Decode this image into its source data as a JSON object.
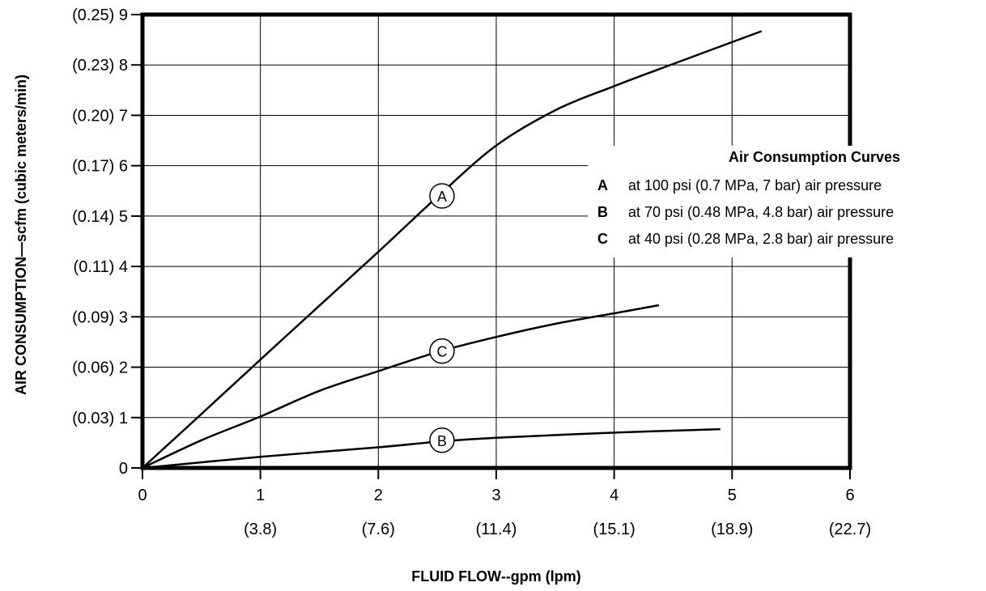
{
  "chart_data": {
    "type": "line",
    "xlabel": "FLUID FLOW--gpm (lpm)",
    "ylabel": "AIR CONSUMPTION—scfm (cubic meters/min)",
    "xlim": [
      0,
      6
    ],
    "ylim": [
      0,
      9
    ],
    "grid": true,
    "x_ticks": [
      {
        "value": 0,
        "label": "0",
        "sublabel": ""
      },
      {
        "value": 1,
        "label": "1",
        "sublabel": "(3.8)"
      },
      {
        "value": 2,
        "label": "2",
        "sublabel": "(7.6)"
      },
      {
        "value": 3,
        "label": "3",
        "sublabel": "(11.4)"
      },
      {
        "value": 4,
        "label": "4",
        "sublabel": "(15.1)"
      },
      {
        "value": 5,
        "label": "5",
        "sublabel": "(18.9)"
      },
      {
        "value": 6,
        "label": "6",
        "sublabel": "(22.7)"
      }
    ],
    "y_ticks": [
      {
        "value": 0,
        "label": "0"
      },
      {
        "value": 1,
        "label": "(0.03) 1"
      },
      {
        "value": 2,
        "label": "(0.06) 2"
      },
      {
        "value": 3,
        "label": "(0.09) 3"
      },
      {
        "value": 4,
        "label": "(0.11) 4"
      },
      {
        "value": 5,
        "label": "(0.14) 5"
      },
      {
        "value": 6,
        "label": "(0.17) 6"
      },
      {
        "value": 7,
        "label": "(0.20) 7"
      },
      {
        "value": 8,
        "label": "(0.23) 8"
      },
      {
        "value": 9,
        "label": "(0.25) 9"
      }
    ],
    "series": [
      {
        "name": "A",
        "label_at": [
          2.54,
          5.4
        ],
        "points": [
          [
            0,
            0
          ],
          [
            0.5,
            1.07
          ],
          [
            1,
            2.15
          ],
          [
            1.5,
            3.22
          ],
          [
            2,
            4.29
          ],
          [
            2.5,
            5.38
          ],
          [
            3,
            6.4
          ],
          [
            3.5,
            7.1
          ],
          [
            4,
            7.58
          ],
          [
            4.5,
            8.02
          ],
          [
            5.25,
            8.67
          ]
        ]
      },
      {
        "name": "B",
        "label_at": [
          2.54,
          0.55
        ],
        "points": [
          [
            0,
            0
          ],
          [
            1,
            0.22
          ],
          [
            2,
            0.41
          ],
          [
            2.5,
            0.52
          ],
          [
            3,
            0.6
          ],
          [
            4,
            0.7
          ],
          [
            4.9,
            0.77
          ]
        ]
      },
      {
        "name": "C",
        "label_at": [
          2.54,
          2.32
        ],
        "points": [
          [
            0,
            0
          ],
          [
            0.5,
            0.55
          ],
          [
            1,
            1.02
          ],
          [
            1.5,
            1.53
          ],
          [
            2,
            1.92
          ],
          [
            2.5,
            2.3
          ],
          [
            3,
            2.6
          ],
          [
            3.5,
            2.86
          ],
          [
            4,
            3.07
          ],
          [
            4.38,
            3.23
          ]
        ]
      }
    ],
    "legend": {
      "title": "Air Consumption Curves",
      "placement": "right",
      "entries": [
        {
          "key": "A",
          "text": "at 100 psi (0.7 MPa, 7 bar) air pressure"
        },
        {
          "key": "B",
          "text": "at 70 psi (0.48 MPa, 4.8 bar) air pressure"
        },
        {
          "key": "C",
          "text": "at 40 psi (0.28 MPa, 2.8 bar) air pressure"
        }
      ]
    }
  }
}
